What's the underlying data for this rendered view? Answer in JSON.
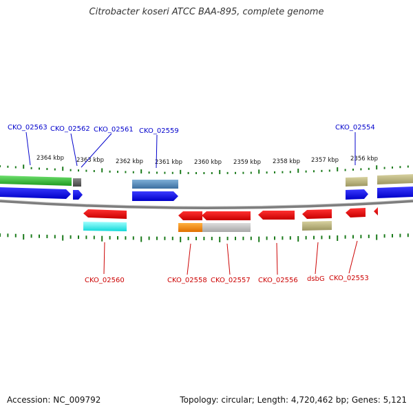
{
  "title": "Citrobacter koseri ATCC BAA-895, complete genome",
  "footer": {
    "accession": "Accession: NC_009792",
    "summary": "Topology: circular; Length: 4,720,462 bp; Genes: 5,121"
  },
  "colors": {
    "forward_label": "#0000cc",
    "reverse_label": "#cc0000",
    "tick": "#1a7a1a",
    "backbone": "#8a8a8a"
  },
  "kbp_labels": [
    "2364 kbp",
    "2363 kbp",
    "2362 kbp",
    "2361 kbp",
    "2360 kbp",
    "2359 kbp",
    "2358 kbp",
    "2357 kbp",
    "2356 kbp"
  ],
  "forward_gene_labels": [
    "CKO_02563",
    "CKO_02562",
    "CKO_02561",
    "CKO_02559",
    "CKO_02554"
  ],
  "reverse_gene_labels": [
    "CKO_02560",
    "CKO_02558",
    "CKO_02557",
    "CKO_02556",
    "dsbG",
    "CKO_02553"
  ]
}
